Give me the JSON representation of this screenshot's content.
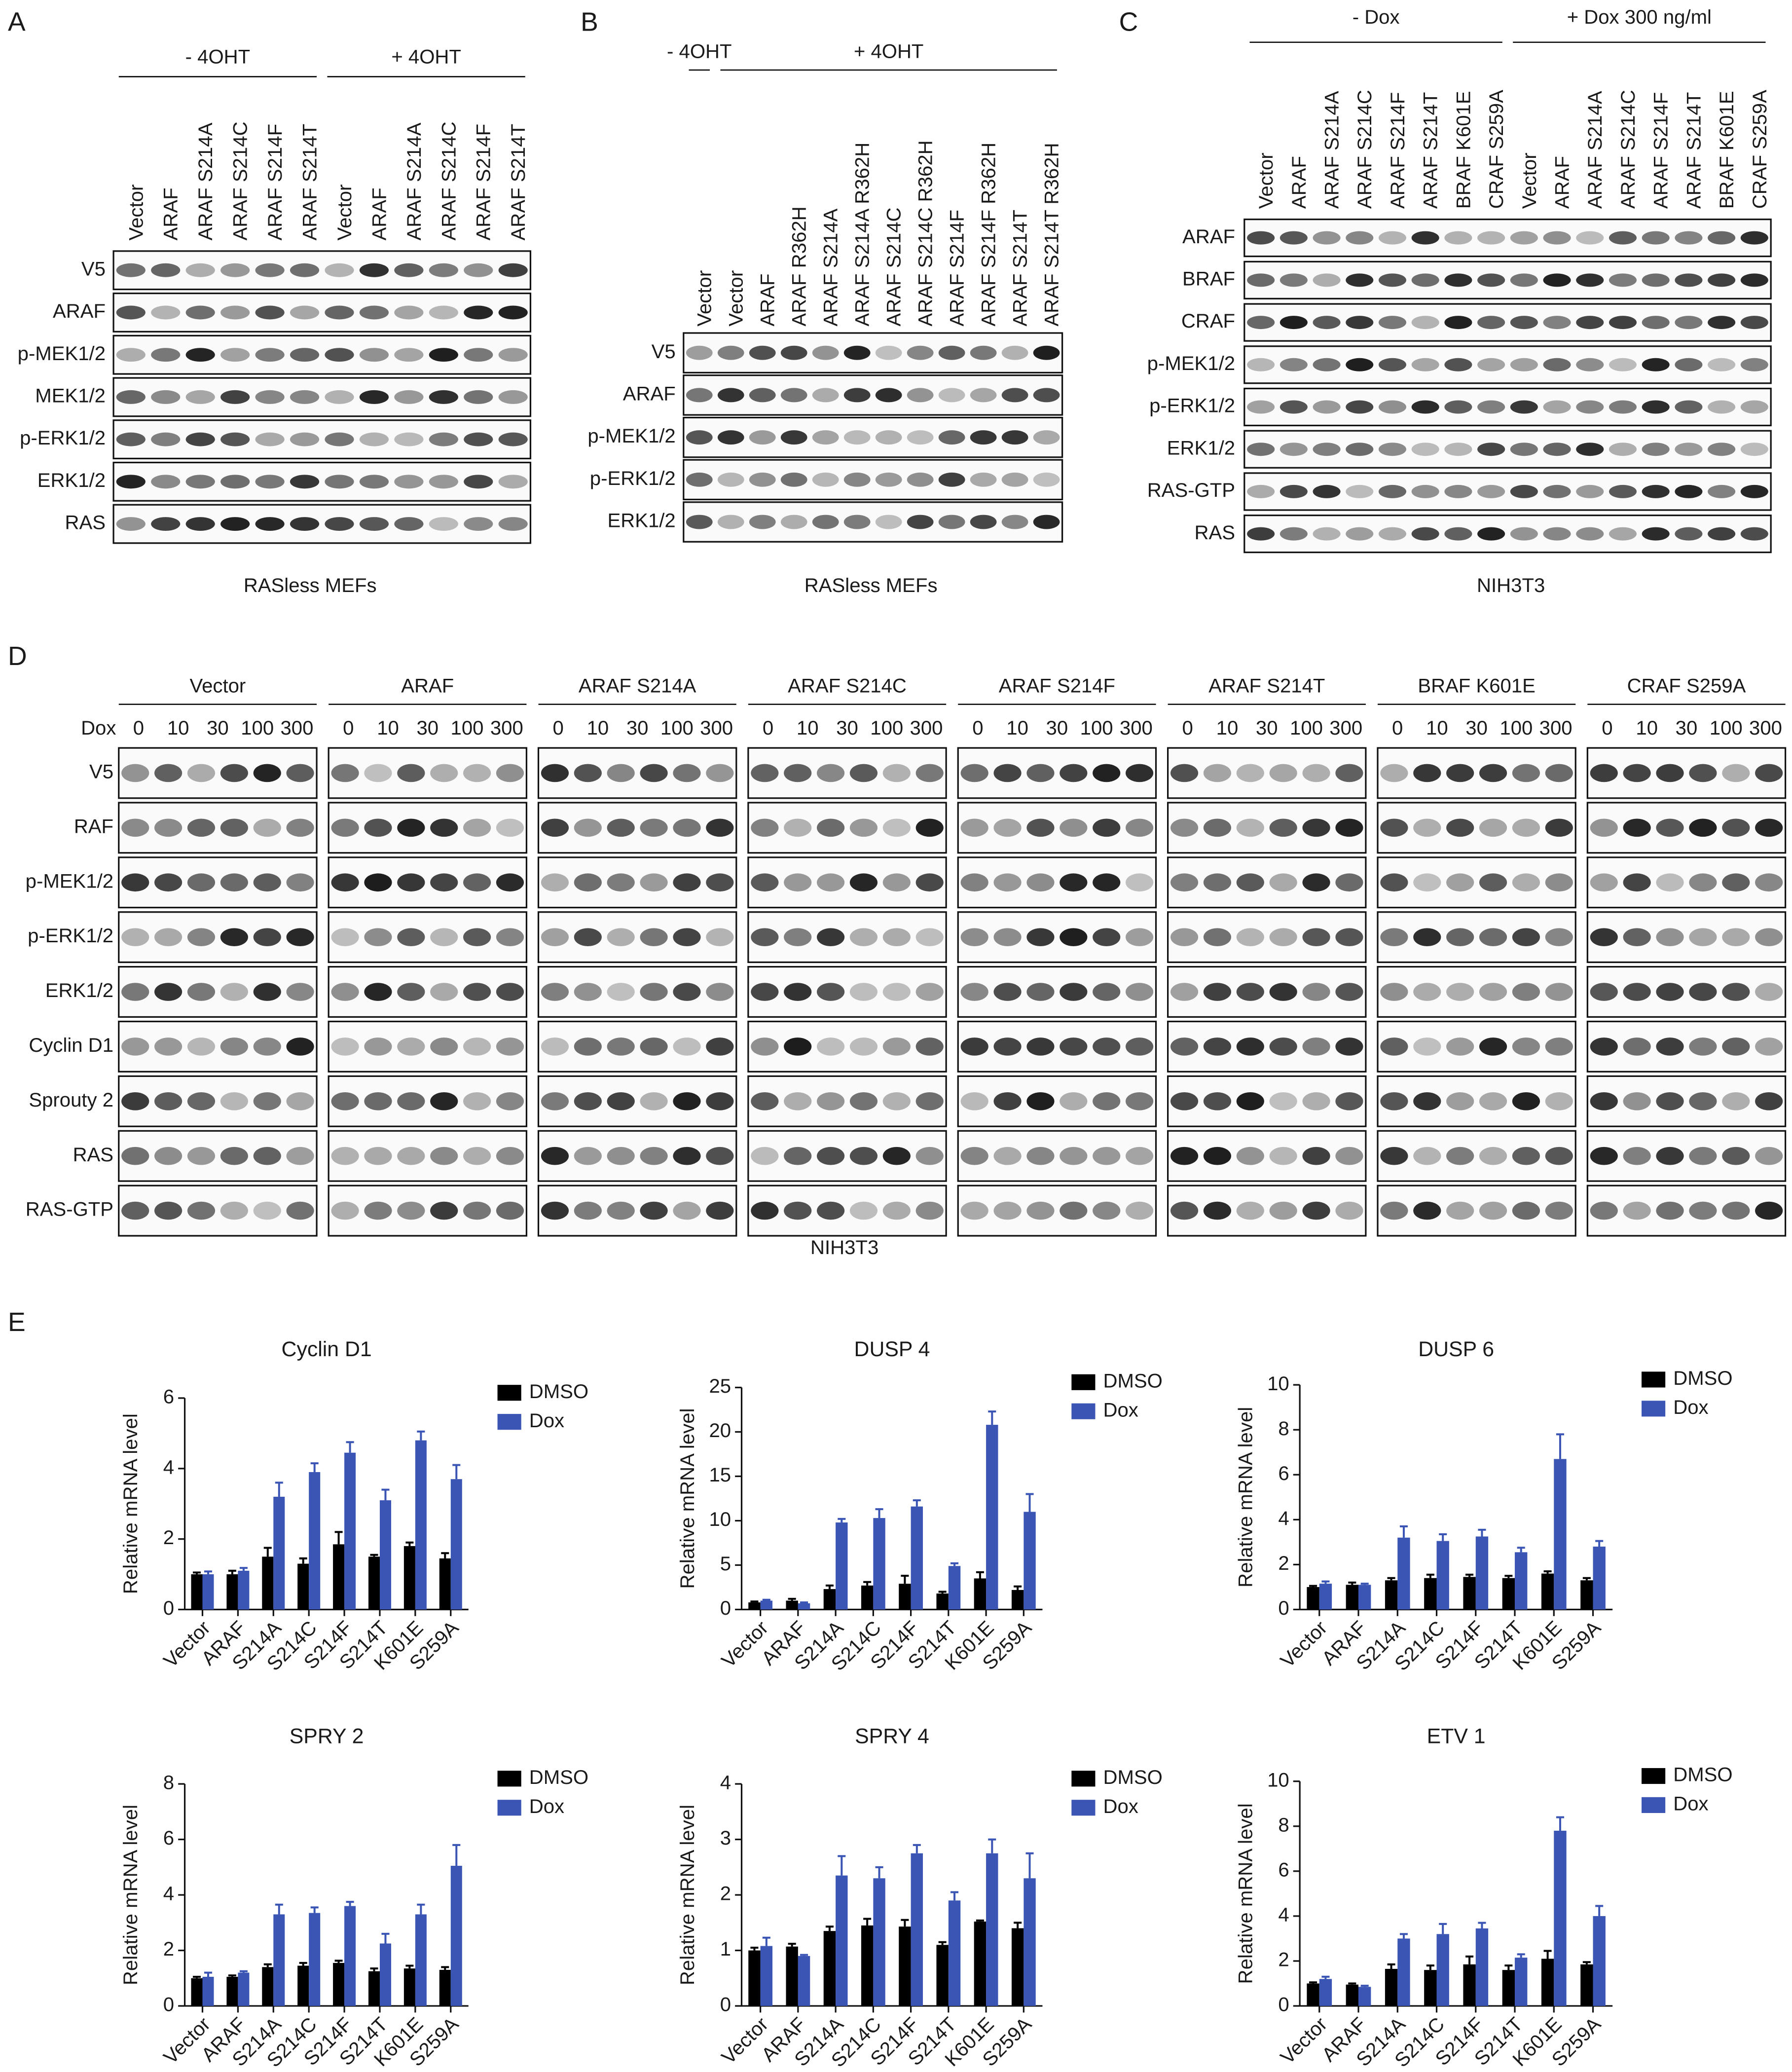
{
  "panels": [
    {
      "label": "A",
      "caption": "RASless MEFs",
      "groups": [
        {
          "label": "- 4OHT",
          "lanes": [
            "Vector",
            "ARAF",
            "ARAF S214A",
            "ARAF S214C",
            "ARAF S214F",
            "ARAF S214T"
          ]
        },
        {
          "label": "+ 4OHT",
          "lanes": [
            "Vector",
            "ARAF",
            "ARAF S214A",
            "ARAF S214C",
            "ARAF S214F",
            "ARAF S214T"
          ]
        }
      ],
      "rows": [
        "V5",
        "ARAF",
        "p-MEK1/2",
        "MEK1/2",
        "p-ERK1/2",
        "ERK1/2",
        "RAS"
      ]
    },
    {
      "label": "B",
      "caption": "RASless MEFs",
      "groups": [
        {
          "label": "- 4OHT",
          "lanes": [
            "Vector"
          ]
        },
        {
          "label": "+ 4OHT",
          "lanes": [
            "Vector",
            "ARAF",
            "ARAF R362H",
            "ARAF S214A",
            "ARAF S214A R362H",
            "ARAF S214C",
            "ARAF S214C R362H",
            "ARAF S214F",
            "ARAF S214F R362H",
            "ARAF S214T",
            "ARAF S214T R362H"
          ]
        }
      ],
      "rows": [
        "V5",
        "ARAF",
        "p-MEK1/2",
        "p-ERK1/2",
        "ERK1/2"
      ]
    },
    {
      "label": "C",
      "caption": "NIH3T3",
      "groups": [
        {
          "label": "- Dox",
          "lanes": [
            "Vector",
            "ARAF",
            "ARAF S214A",
            "ARAF S214C",
            "ARAF S214F",
            "ARAF S214T",
            "BRAF K601E",
            "CRAF S259A"
          ]
        },
        {
          "label": "+ Dox 300 ng/ml",
          "lanes": [
            "Vector",
            "ARAF",
            "ARAF S214A",
            "ARAF S214C",
            "ARAF S214F",
            "ARAF S214T",
            "BRAF K601E",
            "CRAF S259A"
          ]
        }
      ],
      "rows": [
        "ARAF",
        "BRAF",
        "CRAF",
        "p-MEK1/2",
        "p-ERK1/2",
        "ERK1/2",
        "RAS-GTP",
        "RAS"
      ]
    },
    {
      "label": "D",
      "caption": "NIH3T3",
      "dose_label": "Dox",
      "doses": [
        "0",
        "10",
        "30",
        "100",
        "300"
      ],
      "groups": [
        {
          "label": "Vector"
        },
        {
          "label": "ARAF"
        },
        {
          "label": "ARAF S214A"
        },
        {
          "label": "ARAF S214C"
        },
        {
          "label": "ARAF S214F"
        },
        {
          "label": "ARAF S214T"
        },
        {
          "label": "BRAF K601E"
        },
        {
          "label": "CRAF S259A"
        }
      ],
      "rows": [
        "V5",
        "RAF",
        "p-MEK1/2",
        "p-ERK1/2",
        "ERK1/2",
        "Cyclin D1",
        "Sprouty 2",
        "RAS",
        "RAS-GTP"
      ]
    }
  ],
  "panel_e_label": "E",
  "chart_data": [
    {
      "type": "bar",
      "title": "Cyclin D1",
      "ylabel": "Relative mRNA level",
      "legend": "upper right",
      "categories": [
        "Vector",
        "ARAF",
        "S214A",
        "S214C",
        "S214F",
        "S214T",
        "K601E",
        "S259A"
      ],
      "ylim": [
        0,
        6
      ],
      "yticks": [
        0,
        2,
        4,
        6
      ],
      "series": [
        {
          "name": "DMSO",
          "color": "#000000",
          "values": [
            1,
            1,
            1.5,
            1.3,
            1.85,
            1.5,
            1.8,
            1.45
          ],
          "errors": [
            0.05,
            0.1,
            0.25,
            0.15,
            0.35,
            0.05,
            0.1,
            0.15
          ]
        },
        {
          "name": "Dox",
          "color": "#3a55b4",
          "values": [
            1,
            1.1,
            3.2,
            3.9,
            4.45,
            3.1,
            4.8,
            3.7
          ],
          "errors": [
            0.08,
            0.08,
            0.4,
            0.25,
            0.3,
            0.3,
            0.25,
            0.4
          ]
        }
      ]
    },
    {
      "type": "bar",
      "title": "DUSP 4",
      "ylabel": "Relative mRNA level",
      "legend": "upper right",
      "categories": [
        "Vector",
        "ARAF",
        "S214A",
        "S214C",
        "S214F",
        "S214T",
        "K601E",
        "S259A"
      ],
      "ylim": [
        0,
        25
      ],
      "yticks": [
        0,
        5,
        10,
        15,
        20,
        25
      ],
      "series": [
        {
          "name": "DMSO",
          "color": "#000000",
          "values": [
            0.8,
            1,
            2.3,
            2.7,
            2.9,
            1.8,
            3.5,
            2.2
          ],
          "errors": [
            0.1,
            0.2,
            0.4,
            0.4,
            0.9,
            0.2,
            0.7,
            0.4
          ]
        },
        {
          "name": "Dox",
          "color": "#3a55b4",
          "values": [
            1,
            0.7,
            9.8,
            10.3,
            11.6,
            4.9,
            20.8,
            11
          ],
          "errors": [
            0.1,
            0.1,
            0.4,
            1,
            0.7,
            0.3,
            1.5,
            2
          ]
        }
      ]
    },
    {
      "type": "bar",
      "title": "DUSP 6",
      "ylabel": "Relative mRNA level",
      "legend": "upper right",
      "categories": [
        "Vector",
        "ARAF",
        "S214A",
        "S214C",
        "S214F",
        "S214T",
        "K601E",
        "S259A"
      ],
      "ylim": [
        0,
        10
      ],
      "yticks": [
        0,
        2,
        4,
        6,
        8,
        10
      ],
      "series": [
        {
          "name": "DMSO",
          "color": "#000000",
          "values": [
            1,
            1.1,
            1.3,
            1.4,
            1.45,
            1.4,
            1.6,
            1.3
          ],
          "errors": [
            0.05,
            0.1,
            0.1,
            0.15,
            0.1,
            0.1,
            0.1,
            0.1
          ]
        },
        {
          "name": "Dox",
          "color": "#3a55b4",
          "values": [
            1.15,
            1.1,
            3.2,
            3.05,
            3.25,
            2.55,
            6.7,
            2.8
          ],
          "errors": [
            0.1,
            0.05,
            0.5,
            0.3,
            0.3,
            0.2,
            1.1,
            0.25
          ]
        }
      ]
    },
    {
      "type": "bar",
      "title": "SPRY 2",
      "ylabel": "Relative mRNA level",
      "legend": "upper right",
      "categories": [
        "Vector",
        "ARAF",
        "S214A",
        "S214C",
        "S214F",
        "S214T",
        "K601E",
        "S259A"
      ],
      "ylim": [
        0,
        8
      ],
      "yticks": [
        0,
        2,
        4,
        6,
        8
      ],
      "series": [
        {
          "name": "DMSO",
          "color": "#000000",
          "values": [
            1,
            1.05,
            1.4,
            1.45,
            1.55,
            1.25,
            1.35,
            1.3
          ],
          "errors": [
            0.05,
            0.05,
            0.1,
            0.1,
            0.08,
            0.1,
            0.1,
            0.1
          ]
        },
        {
          "name": "Dox",
          "color": "#3a55b4",
          "values": [
            1.05,
            1.2,
            3.3,
            3.35,
            3.6,
            2.25,
            3.3,
            5.05
          ],
          "errors": [
            0.15,
            0.05,
            0.35,
            0.2,
            0.15,
            0.35,
            0.35,
            0.75
          ]
        }
      ]
    },
    {
      "type": "bar",
      "title": "SPRY 4",
      "ylabel": "Relative mRNA level",
      "legend": "upper right",
      "categories": [
        "Vector",
        "ARAF",
        "S214A",
        "S214C",
        "S214F",
        "S214T",
        "K601E",
        "S259A"
      ],
      "ylim": [
        0,
        4
      ],
      "yticks": [
        0,
        1,
        2,
        3,
        4
      ],
      "series": [
        {
          "name": "DMSO",
          "color": "#000000",
          "values": [
            1,
            1.07,
            1.35,
            1.45,
            1.43,
            1.1,
            1.52,
            1.4
          ],
          "errors": [
            0.05,
            0.05,
            0.08,
            0.12,
            0.12,
            0.05,
            0.02,
            0.1
          ]
        },
        {
          "name": "Dox",
          "color": "#3a55b4",
          "values": [
            1.08,
            0.9,
            2.35,
            2.3,
            2.75,
            1.9,
            2.75,
            2.3
          ],
          "errors": [
            0.15,
            0.02,
            0.35,
            0.2,
            0.15,
            0.15,
            0.25,
            0.45
          ]
        }
      ]
    },
    {
      "type": "bar",
      "title": "ETV 1",
      "ylabel": "Relative mRNA level",
      "legend": "upper right",
      "categories": [
        "Vector",
        "ARAF",
        "S214A",
        "S214C",
        "S214F",
        "S214T",
        "K601E",
        "S259A"
      ],
      "ylim": [
        0,
        10
      ],
      "yticks": [
        0,
        2,
        4,
        6,
        8,
        10
      ],
      "series": [
        {
          "name": "DMSO",
          "color": "#000000",
          "values": [
            1,
            0.95,
            1.65,
            1.6,
            1.85,
            1.6,
            2.1,
            1.85
          ],
          "errors": [
            0.05,
            0.05,
            0.2,
            0.2,
            0.35,
            0.2,
            0.35,
            0.1
          ]
        },
        {
          "name": "Dox",
          "color": "#3a55b4",
          "values": [
            1.2,
            0.85,
            3,
            3.2,
            3.45,
            2.15,
            7.8,
            4
          ],
          "errors": [
            0.1,
            0.05,
            0.2,
            0.45,
            0.25,
            0.15,
            0.6,
            0.45
          ]
        }
      ]
    }
  ]
}
